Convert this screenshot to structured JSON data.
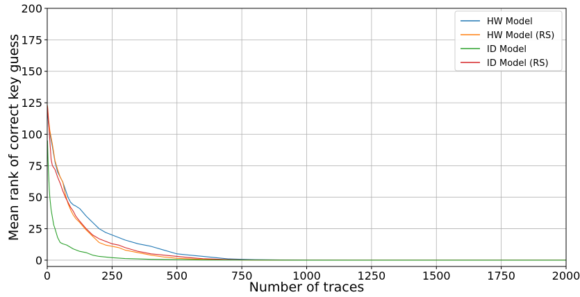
{
  "chart_data": {
    "type": "line",
    "title": "",
    "xlabel": "Number of traces",
    "ylabel": "Mean rank of correct key guess",
    "xlim": [
      0,
      2000
    ],
    "ylim": [
      -5,
      200
    ],
    "xticks": [
      0,
      250,
      500,
      750,
      1000,
      1250,
      1500,
      1750,
      2000
    ],
    "yticks": [
      0,
      25,
      50,
      75,
      100,
      125,
      150,
      175,
      200
    ],
    "grid": true,
    "legend_position": "top-right",
    "series": [
      {
        "name": "HW Model",
        "color": "#1f77b4",
        "x": [
          1,
          5,
          10,
          20,
          30,
          40,
          50,
          60,
          70,
          80,
          90,
          100,
          110,
          125,
          150,
          175,
          200,
          225,
          250,
          275,
          300,
          350,
          400,
          450,
          500,
          550,
          600,
          650,
          700,
          750,
          800,
          900,
          1000,
          1250,
          1500,
          1750,
          2000
        ],
        "y": [
          118,
          108,
          101,
          90,
          78,
          70,
          66,
          62,
          56,
          50,
          46,
          44,
          43,
          41,
          35,
          30,
          25,
          22,
          20,
          18,
          16,
          13,
          11,
          8,
          5,
          4,
          3,
          2,
          1,
          0.7,
          0.4,
          0.2,
          0.1,
          0,
          0,
          0,
          0
        ]
      },
      {
        "name": "HW Model (RS)",
        "color": "#ff7f0e",
        "x": [
          1,
          5,
          10,
          20,
          30,
          40,
          50,
          60,
          70,
          80,
          90,
          100,
          110,
          125,
          150,
          175,
          200,
          225,
          250,
          275,
          300,
          350,
          400,
          450,
          500,
          550,
          600,
          650,
          700,
          750,
          800,
          900,
          1000,
          1250,
          1500,
          1750,
          2000
        ],
        "y": [
          123,
          112,
          103,
          92,
          79,
          72,
          66,
          62,
          52,
          45,
          40,
          36,
          33,
          30,
          24,
          19,
          14,
          12,
          11,
          10,
          8,
          6,
          4,
          2.5,
          1.5,
          1,
          0.6,
          0.4,
          0.3,
          0.2,
          0.1,
          0,
          0,
          0,
          0,
          0,
          0
        ]
      },
      {
        "name": "ID Model",
        "color": "#2ca02c",
        "x": [
          1,
          3,
          5,
          8,
          10,
          15,
          20,
          25,
          30,
          40,
          50,
          60,
          75,
          100,
          125,
          150,
          175,
          200,
          250,
          300,
          350,
          400,
          500,
          600,
          750,
          1000,
          1250,
          1500,
          1750,
          2000
        ],
        "y": [
          95,
          80,
          70,
          56,
          50,
          40,
          34,
          28,
          25,
          18,
          14,
          13,
          12,
          9,
          7,
          6,
          4,
          3,
          2,
          1.3,
          1,
          0.7,
          0.4,
          0.2,
          0.1,
          0,
          0,
          0,
          0,
          0
        ]
      },
      {
        "name": "ID Model (RS)",
        "color": "#d62728",
        "x": [
          1,
          5,
          10,
          15,
          20,
          30,
          40,
          50,
          60,
          70,
          80,
          90,
          100,
          110,
          125,
          150,
          175,
          200,
          225,
          250,
          275,
          300,
          350,
          400,
          450,
          500,
          550,
          600,
          650,
          700,
          750,
          800,
          900,
          1000,
          1250,
          1500,
          1750,
          2000
        ],
        "y": [
          122,
          110,
          95,
          80,
          75,
          72,
          66,
          61,
          55,
          50,
          46,
          42,
          39,
          35,
          31,
          25,
          20,
          17,
          15,
          13,
          12,
          10,
          7,
          5,
          4,
          3,
          2,
          1.2,
          0.8,
          0.5,
          0.3,
          0.2,
          0.1,
          0,
          0,
          0,
          0,
          0
        ]
      }
    ]
  }
}
